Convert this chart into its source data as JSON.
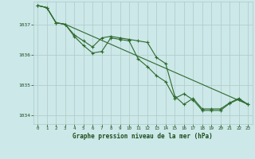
{
  "background_color": "#cce8e8",
  "grid_color": "#b0c8c8",
  "line_color": "#2d6a2d",
  "title_color": "#1a4d1a",
  "xlabel": "Graphe pression niveau de la mer (hPa)",
  "ylim": [
    1033.7,
    1037.75
  ],
  "xlim": [
    -0.5,
    23.5
  ],
  "yticks": [
    1034,
    1035,
    1036,
    1037
  ],
  "xticks": [
    0,
    1,
    2,
    3,
    4,
    5,
    6,
    7,
    8,
    9,
    10,
    11,
    12,
    13,
    14,
    15,
    16,
    17,
    18,
    19,
    20,
    21,
    22,
    23
  ],
  "series1_x": [
    0,
    1,
    2,
    3,
    4,
    5,
    6,
    7,
    8,
    9,
    10,
    11,
    12,
    13,
    14,
    15,
    16,
    17,
    18,
    19,
    20,
    21,
    22,
    23
  ],
  "series1_y": [
    1037.62,
    1037.55,
    1037.05,
    1037.0,
    1036.65,
    1036.45,
    1036.25,
    1036.55,
    1036.6,
    1036.55,
    1036.5,
    1036.45,
    1036.4,
    1035.9,
    1035.7,
    1034.62,
    1034.35,
    1034.55,
    1034.2,
    1034.2,
    1034.2,
    1034.4,
    1034.55,
    1034.35
  ],
  "series2_x": [
    0,
    1,
    2,
    3,
    4,
    5,
    6,
    7,
    8,
    9,
    10,
    11,
    12,
    13,
    14,
    15,
    16,
    17,
    18,
    19,
    20,
    21,
    22,
    23
  ],
  "series2_y": [
    1037.62,
    1037.55,
    1037.05,
    1037.0,
    1036.6,
    1036.3,
    1036.05,
    1036.1,
    1036.55,
    1036.5,
    1036.45,
    1035.85,
    1035.6,
    1035.3,
    1035.1,
    1034.55,
    1034.7,
    1034.5,
    1034.15,
    1034.15,
    1034.15,
    1034.38,
    1034.52,
    1034.35
  ],
  "series3_x": [
    0,
    1,
    2,
    3,
    23
  ],
  "series3_y": [
    1037.62,
    1037.55,
    1037.05,
    1037.0,
    1034.35
  ]
}
